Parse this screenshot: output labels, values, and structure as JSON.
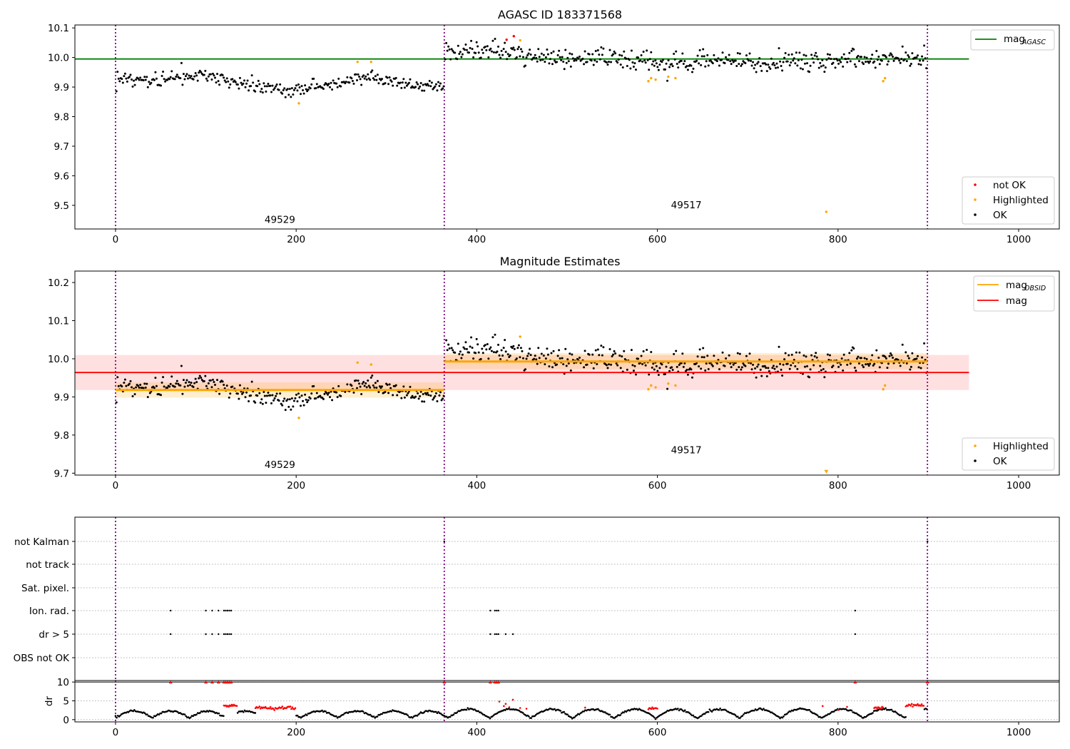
{
  "chart_data": [
    {
      "type": "scatter",
      "title": "AGASC ID 183371568",
      "xlabel": "",
      "ylabel": "",
      "xlim": [
        -45,
        1045
      ],
      "ylim": [
        9.42,
        10.11
      ],
      "xticks": [
        0,
        200,
        400,
        600,
        800,
        1000
      ],
      "yticks": [
        9.5,
        9.6,
        9.7,
        9.8,
        9.9,
        10.0,
        10.1
      ],
      "obs_boundaries": [
        0,
        364,
        899
      ],
      "obs_labels": [
        {
          "text": "49529",
          "x": 182,
          "y": 9.44
        },
        {
          "text": "49517",
          "x": 632,
          "y": 9.49
        }
      ],
      "hlines": [
        {
          "name": "mag_AGASC",
          "y": 9.995,
          "xmin": -45,
          "xmax": 945,
          "color": "#008000"
        }
      ],
      "segments": [
        {
          "x0": 0,
          "x1": 364,
          "anchors": [
            [
              0,
              9.935
            ],
            [
              40,
              9.92
            ],
            [
              90,
              9.945
            ],
            [
              120,
              9.925
            ],
            [
              160,
              9.895
            ],
            [
              200,
              9.89
            ],
            [
              240,
              9.905
            ],
            [
              270,
              9.935
            ],
            [
              300,
              9.925
            ],
            [
              330,
              9.905
            ],
            [
              364,
              9.905
            ]
          ],
          "noise": 0.012
        },
        {
          "x0": 364,
          "x1": 899,
          "anchors": [
            [
              364,
              10.02
            ],
            [
              400,
              10.03
            ],
            [
              440,
              10.02
            ],
            [
              480,
              9.995
            ],
            [
              540,
              10.0
            ],
            [
              600,
              9.98
            ],
            [
              640,
              9.99
            ],
            [
              700,
              9.985
            ],
            [
              760,
              9.99
            ],
            [
              820,
              9.995
            ],
            [
              899,
              9.995
            ]
          ],
          "noise": 0.017
        }
      ],
      "highlighted": [
        [
          203,
          9.845
        ],
        [
          268,
          9.985
        ],
        [
          283,
          9.985
        ],
        [
          590,
          9.92
        ],
        [
          593,
          9.93
        ],
        [
          598,
          9.925
        ],
        [
          612,
          9.935
        ],
        [
          620,
          9.93
        ],
        [
          448,
          10.058
        ],
        [
          850,
          9.92
        ],
        [
          852,
          9.93
        ],
        [
          787,
          9.478
        ]
      ],
      "not_ok": [
        [
          433,
          10.06
        ],
        [
          441,
          10.072
        ]
      ],
      "legend_top": [
        {
          "label": "mag",
          "sub": "AGASC",
          "color": "#008000",
          "marker": "line"
        }
      ],
      "legend_bottom": [
        {
          "label": "not OK",
          "color": "#ff0000",
          "marker": "dot"
        },
        {
          "label": "Highlighted",
          "color": "#ffa500",
          "marker": "dot"
        },
        {
          "label": "OK",
          "color": "#000000",
          "marker": "dot"
        }
      ]
    },
    {
      "type": "scatter",
      "title": "Magnitude Estimates",
      "xlabel": "",
      "ylabel": "",
      "xlim": [
        -45,
        1045
      ],
      "ylim": [
        9.695,
        10.23
      ],
      "xticks": [
        0,
        200,
        400,
        600,
        800,
        1000
      ],
      "yticks": [
        9.7,
        9.8,
        9.9,
        10.0,
        10.1,
        10.2
      ],
      "obs_boundaries": [
        0,
        364,
        899
      ],
      "obs_labels": [
        {
          "text": "49529",
          "x": 182,
          "y": 9.714
        },
        {
          "text": "49517",
          "x": 632,
          "y": 9.752
        }
      ],
      "mag": {
        "value": 9.964,
        "lo": 9.918,
        "hi": 10.01,
        "xmin": -45,
        "xmax": 945,
        "color": "#ff0000"
      },
      "mag_obsid": [
        {
          "x0": 0,
          "x1": 364,
          "value": 9.918,
          "lo": 9.898,
          "hi": 9.938
        },
        {
          "x0": 364,
          "x1": 899,
          "value": 9.993,
          "lo": 9.973,
          "hi": 10.015
        }
      ],
      "highlighted": [
        [
          203,
          9.845
        ],
        [
          268,
          9.99
        ],
        [
          283,
          9.985
        ],
        [
          590,
          9.92
        ],
        [
          593,
          9.93
        ],
        [
          598,
          9.925
        ],
        [
          612,
          9.935
        ],
        [
          620,
          9.93
        ],
        [
          448,
          10.058
        ],
        [
          850,
          9.92
        ],
        [
          852,
          9.93
        ],
        [
          787,
          9.703
        ]
      ],
      "legend_top": [
        {
          "label": "mag",
          "sub": "OBSID",
          "color": "#ffa500",
          "marker": "line"
        },
        {
          "label": "mag",
          "sub": "",
          "color": "#ff0000",
          "marker": "line"
        }
      ],
      "legend_bottom": [
        {
          "label": "Highlighted",
          "color": "#ffa500",
          "marker": "dot"
        },
        {
          "label": "OK",
          "color": "#000000",
          "marker": "dot"
        }
      ]
    },
    {
      "type": "scatter",
      "title": "",
      "xlabel": "",
      "ylabel": "",
      "xlim": [
        -45,
        1045
      ],
      "xticks": [
        0,
        200,
        400,
        600,
        800,
        1000
      ],
      "obs_boundaries": [
        0,
        364,
        899
      ],
      "flag_rows": [
        "not Kalman",
        "not track",
        "Sat. pixel.",
        "Ion. rad.",
        "dr > 5",
        "OBS not OK"
      ],
      "flags": {
        "not Kalman": [
          364,
          899
        ],
        "not track": [],
        "Sat. pixel.": [],
        "Ion. rad.": [
          61,
          100,
          107,
          114,
          120,
          122,
          124,
          126,
          128,
          415,
          420,
          422,
          424,
          819
        ],
        "dr > 5": [
          61,
          100,
          107,
          114,
          120,
          122,
          124,
          126,
          128,
          415,
          420,
          422,
          424,
          432,
          440,
          819
        ],
        "OBS not OK": []
      }
    },
    {
      "type": "scatter",
      "title": "",
      "xlabel": "",
      "ylabel": "dr",
      "xlim": [
        -45,
        1045
      ],
      "ylim": [
        -0.6,
        10.4
      ],
      "xticks": [
        0,
        200,
        400,
        600,
        800,
        1000
      ],
      "yticks": [
        0,
        5,
        10
      ],
      "obs_boundaries": [
        0,
        364,
        899
      ],
      "red_clip_points": [
        61,
        100,
        107,
        114,
        120,
        122,
        124,
        126,
        128,
        364,
        415,
        420,
        422,
        424,
        819,
        899
      ],
      "red_runs": [
        [
          120,
          135,
          3.8
        ],
        [
          155,
          200,
          3.1
        ],
        [
          590,
          600,
          3.0
        ],
        [
          840,
          850,
          3.0
        ],
        [
          875,
          895,
          3.9
        ]
      ],
      "red_scatter": [
        [
          425,
          4.8
        ],
        [
          430,
          3.6
        ],
        [
          432,
          4.2
        ],
        [
          436,
          3.3
        ],
        [
          440,
          5.3
        ],
        [
          448,
          3.1
        ],
        [
          455,
          2.9
        ],
        [
          520,
          3.2
        ],
        [
          783,
          3.6
        ],
        [
          800,
          2.6
        ],
        [
          810,
          3.4
        ]
      ]
    }
  ]
}
